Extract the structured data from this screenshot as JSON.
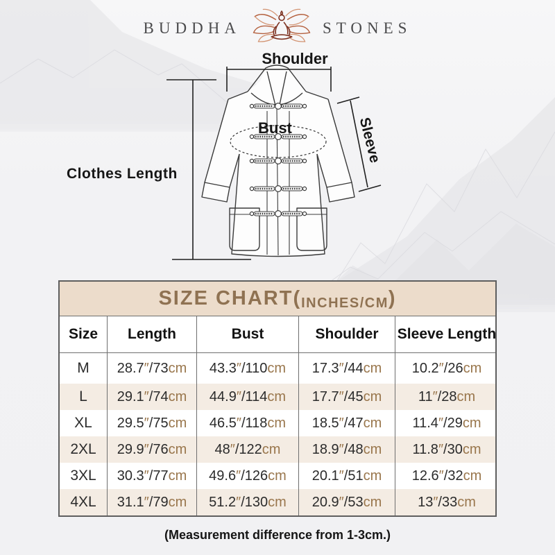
{
  "brand": {
    "word_left": "BUDDHA",
    "word_right": "STONES",
    "logo_icon": "lotus-meditation-icon"
  },
  "diagram": {
    "shoulder_label": "Shoulder",
    "bust_label": "Bust",
    "sleeve_label": "Sleeve",
    "clothes_length_label": "Clothes Length"
  },
  "size_chart": {
    "title_main": "SIZE CHART(",
    "title_sub": "INCHES/CM",
    "title_close": ")",
    "columns": [
      "Size",
      "Length",
      "Bust",
      "Shoulder",
      "Sleeve Length"
    ],
    "inch_mark": "″",
    "cm_label": "cm",
    "rows": [
      {
        "size": "M",
        "measurements": [
          {
            "in": "28.7",
            "cm": "73"
          },
          {
            "in": "43.3",
            "cm": "110"
          },
          {
            "in": "17.3",
            "cm": "44"
          },
          {
            "in": "10.2",
            "cm": "26"
          }
        ]
      },
      {
        "size": "L",
        "measurements": [
          {
            "in": "29.1",
            "cm": "74"
          },
          {
            "in": "44.9",
            "cm": "114"
          },
          {
            "in": "17.7",
            "cm": "45"
          },
          {
            "in": "11",
            "cm": "28"
          }
        ]
      },
      {
        "size": "XL",
        "measurements": [
          {
            "in": "29.5",
            "cm": "75"
          },
          {
            "in": "46.5",
            "cm": "118"
          },
          {
            "in": "18.5",
            "cm": "47"
          },
          {
            "in": "11.4",
            "cm": "29"
          }
        ]
      },
      {
        "size": "2XL",
        "measurements": [
          {
            "in": "29.9",
            "cm": "76"
          },
          {
            "in": "48",
            "cm": "122"
          },
          {
            "in": "18.9",
            "cm": "48"
          },
          {
            "in": "11.8",
            "cm": "30"
          }
        ]
      },
      {
        "size": "3XL",
        "measurements": [
          {
            "in": "30.3",
            "cm": "77"
          },
          {
            "in": "49.6",
            "cm": "126"
          },
          {
            "in": "20.1",
            "cm": "51"
          },
          {
            "in": "12.6",
            "cm": "32"
          }
        ]
      },
      {
        "size": "4XL",
        "measurements": [
          {
            "in": "31.1",
            "cm": "79"
          },
          {
            "in": "51.2",
            "cm": "130"
          },
          {
            "in": "20.9",
            "cm": "53"
          },
          {
            "in": "13",
            "cm": "33"
          }
        ]
      }
    ]
  },
  "note": "(Measurement difference from 1-3cm.)",
  "colors": {
    "title_band": "#ecdccb",
    "stripe": "#f4ece3",
    "accent_brown": "#99764c",
    "title_text": "#8f7252",
    "border": "#6e6e6e",
    "text": "#2b2b2b"
  }
}
